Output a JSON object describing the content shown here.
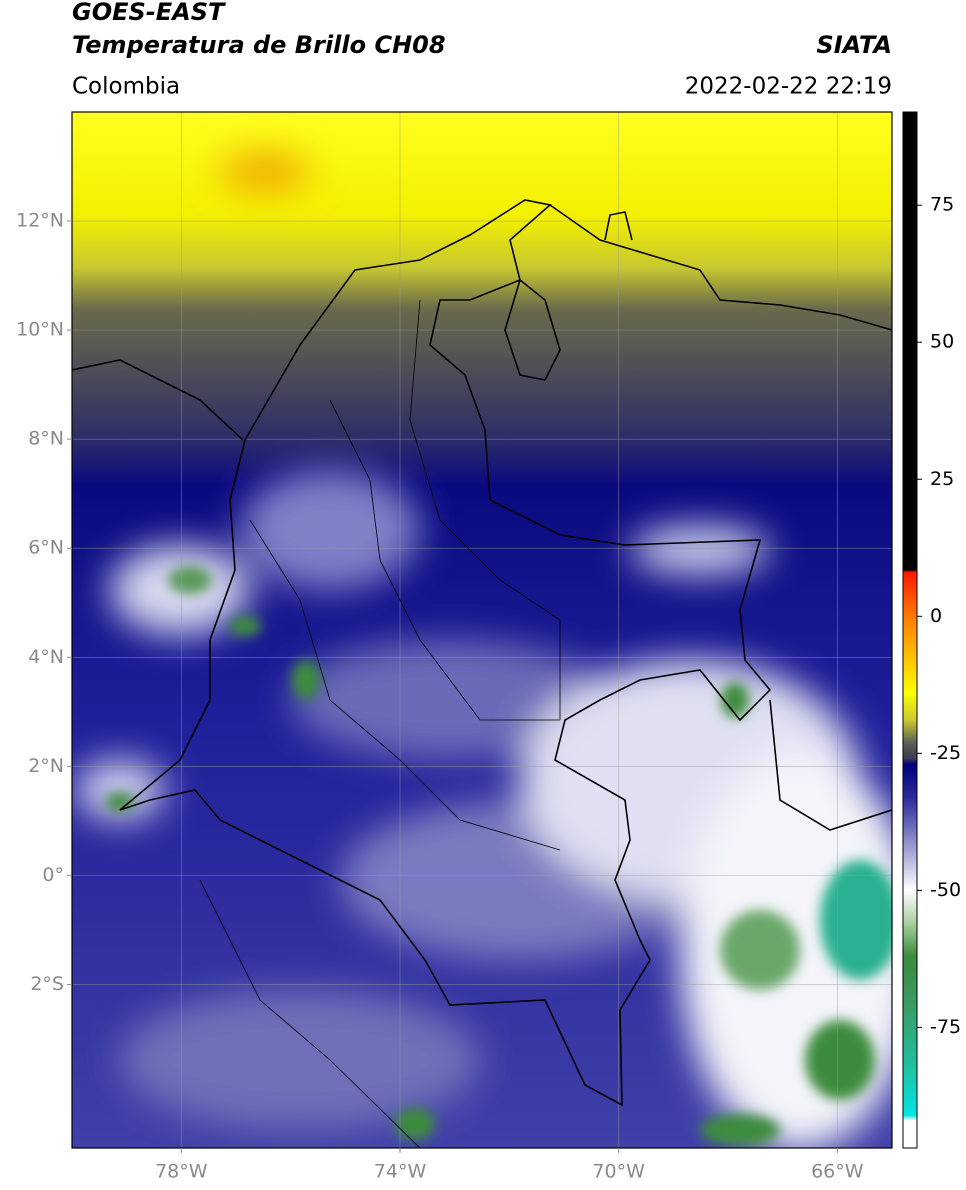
{
  "header": {
    "title_line1": "GOES-EAST",
    "title_line2": "Temperatura de Brillo CH08",
    "region": "Colombia",
    "source": "SIATA",
    "timestamp": "2022-02-22 22:19"
  },
  "map": {
    "lonlim": [
      -80,
      -65
    ],
    "latlim": [
      -5,
      14
    ],
    "grid": true,
    "lonticks": [
      {
        "value": -78,
        "label": "78°W"
      },
      {
        "value": -74,
        "label": "74°W"
      },
      {
        "value": -70,
        "label": "70°W"
      },
      {
        "value": -66,
        "label": "66°W"
      }
    ],
    "latticks": [
      {
        "value": 12,
        "label": "12°N"
      },
      {
        "value": 10,
        "label": "10°N"
      },
      {
        "value": 8,
        "label": "8°N"
      },
      {
        "value": 6,
        "label": "6°N"
      },
      {
        "value": 4,
        "label": "4°N"
      },
      {
        "value": 2,
        "label": "2°N"
      },
      {
        "value": 0,
        "label": "0°"
      },
      {
        "value": -2,
        "label": "2°S"
      }
    ]
  },
  "colorbar": {
    "lim": [
      -97,
      92
    ],
    "ticks": [
      75,
      50,
      25,
      0,
      -25,
      -50,
      -75
    ],
    "colormap": [
      {
        "value": 92,
        "color": "#000000"
      },
      {
        "value": 8.5,
        "color": "#000000"
      },
      {
        "value": 8,
        "color": "#ff1a00"
      },
      {
        "value": 0,
        "color": "#ff7a00"
      },
      {
        "value": -9,
        "color": "#ffd000"
      },
      {
        "value": -14,
        "color": "#ffff00"
      },
      {
        "value": -19,
        "color": "#c8c830"
      },
      {
        "value": -23,
        "color": "#606055"
      },
      {
        "value": -26,
        "color": "#3a3a55"
      },
      {
        "value": -27,
        "color": "#000080"
      },
      {
        "value": -33,
        "color": "#2a2a9a"
      },
      {
        "value": -42,
        "color": "#9a9ad0"
      },
      {
        "value": -50,
        "color": "#ffffff"
      },
      {
        "value": -56,
        "color": "#a8d0a0"
      },
      {
        "value": -62,
        "color": "#3c8c3c"
      },
      {
        "value": -70,
        "color": "#3a9a60"
      },
      {
        "value": -82,
        "color": "#20c0a0"
      },
      {
        "value": -91,
        "color": "#00e5e5"
      },
      {
        "value": -92,
        "color": "#ffffff"
      },
      {
        "value": -97,
        "color": "#ffffff"
      }
    ]
  }
}
